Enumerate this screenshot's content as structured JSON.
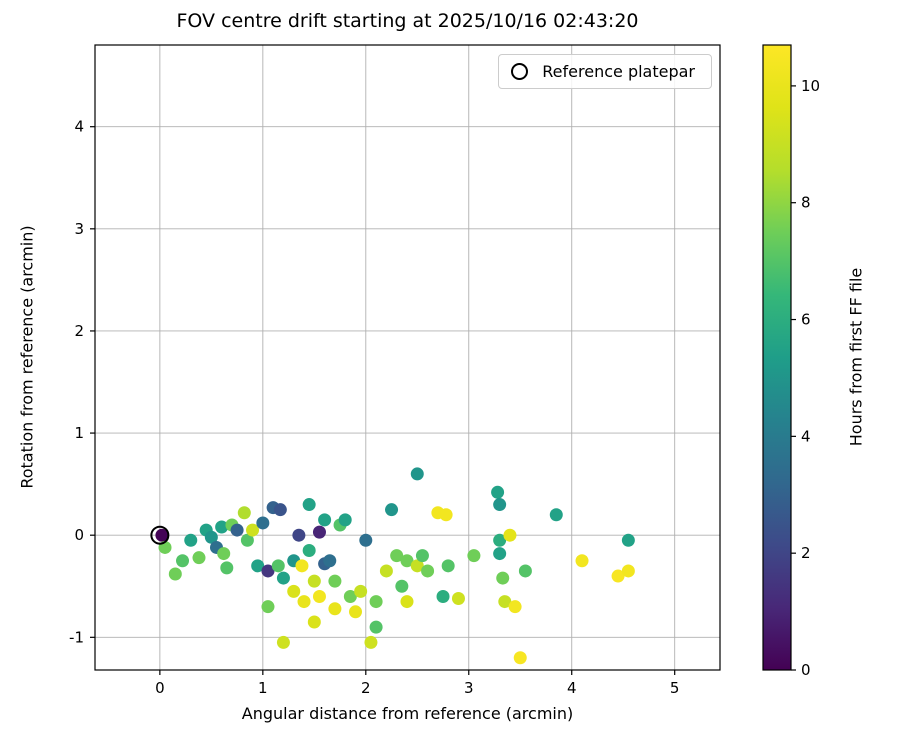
{
  "chart_data": {
    "type": "scatter",
    "title": "FOV centre drift starting at 2025/10/16 02:43:20",
    "xlabel": "Angular distance from reference (arcmin)",
    "ylabel": "Rotation from reference (arcmin)",
    "colorbar_label": "Hours from first FF file",
    "legend_label": "Reference platepar",
    "xlim": [
      -0.63,
      5.44
    ],
    "ylim": [
      -1.32,
      4.8
    ],
    "x_ticks": [
      0,
      1,
      2,
      3,
      4,
      5
    ],
    "y_ticks": [
      -1,
      0,
      1,
      2,
      3,
      4
    ],
    "grid": true,
    "grid_color": "#b0b0b0",
    "legend_position": "upper right",
    "colormap": "viridis",
    "colormap_stops": [
      "#440154",
      "#482878",
      "#3e4a89",
      "#31688e",
      "#26828e",
      "#1f9e89",
      "#35b779",
      "#6ece58",
      "#b5de2b",
      "#dfe318",
      "#fde725"
    ],
    "colorbar": {
      "min": 0,
      "max": 10.7,
      "ticks": [
        0,
        2,
        4,
        6,
        8,
        10
      ]
    },
    "reference_point": {
      "x": 0,
      "y": 0
    },
    "points_format": [
      "angular_distance_arcmin",
      "rotation_arcmin",
      "hours_from_first_ff_file"
    ],
    "points": [
      [
        0.02,
        0.0,
        0.05
      ],
      [
        0.05,
        -0.12,
        7.5
      ],
      [
        0.15,
        -0.38,
        7.5
      ],
      [
        0.22,
        -0.25,
        7.0
      ],
      [
        0.3,
        -0.05,
        5.5
      ],
      [
        0.38,
        -0.22,
        7.5
      ],
      [
        0.45,
        0.05,
        5.5
      ],
      [
        0.5,
        -0.02,
        5.0
      ],
      [
        0.55,
        -0.12,
        3.5
      ],
      [
        0.6,
        0.08,
        5.5
      ],
      [
        0.62,
        -0.18,
        7.5
      ],
      [
        0.65,
        -0.32,
        7.0
      ],
      [
        0.7,
        0.1,
        7.5
      ],
      [
        0.75,
        0.05,
        3.0
      ],
      [
        0.82,
        0.22,
        8.5
      ],
      [
        0.85,
        -0.05,
        7.0
      ],
      [
        0.9,
        0.05,
        9.2
      ],
      [
        0.95,
        -0.3,
        5.5
      ],
      [
        1.0,
        0.12,
        3.5
      ],
      [
        1.05,
        -0.35,
        1.5
      ],
      [
        1.05,
        -0.7,
        7.5
      ],
      [
        1.1,
        0.27,
        3.0
      ],
      [
        1.17,
        0.25,
        2.5
      ],
      [
        1.15,
        -0.3,
        7.0
      ],
      [
        1.2,
        -0.42,
        5.5
      ],
      [
        1.2,
        -1.05,
        9.2
      ],
      [
        1.3,
        -0.25,
        5.0
      ],
      [
        1.3,
        -0.55,
        9.5
      ],
      [
        1.35,
        0.0,
        2.0
      ],
      [
        1.38,
        -0.3,
        10.3
      ],
      [
        1.4,
        -0.65,
        10.0
      ],
      [
        1.45,
        0.3,
        5.5
      ],
      [
        1.45,
        -0.15,
        6.0
      ],
      [
        1.5,
        -0.45,
        9.0
      ],
      [
        1.5,
        -0.85,
        9.5
      ],
      [
        1.55,
        0.03,
        1.0
      ],
      [
        1.55,
        -0.6,
        10.3
      ],
      [
        1.6,
        0.15,
        5.5
      ],
      [
        1.6,
        -0.28,
        3.0
      ],
      [
        1.65,
        -0.25,
        3.5
      ],
      [
        1.7,
        -0.45,
        7.5
      ],
      [
        1.7,
        -0.72,
        10.0
      ],
      [
        1.75,
        0.1,
        7.0
      ],
      [
        1.8,
        0.15,
        5.5
      ],
      [
        1.85,
        -0.6,
        7.5
      ],
      [
        1.9,
        -0.75,
        10.0
      ],
      [
        1.95,
        -0.55,
        9.0
      ],
      [
        2.0,
        -0.05,
        3.5
      ],
      [
        2.05,
        -1.05,
        9.2
      ],
      [
        2.1,
        -0.65,
        7.5
      ],
      [
        2.1,
        -0.9,
        7.0
      ],
      [
        2.2,
        -0.35,
        9.0
      ],
      [
        2.25,
        0.25,
        5.0
      ],
      [
        2.3,
        -0.2,
        7.5
      ],
      [
        2.35,
        -0.5,
        7.0
      ],
      [
        2.4,
        -0.25,
        7.5
      ],
      [
        2.4,
        -0.65,
        9.5
      ],
      [
        2.5,
        0.6,
        5.0
      ],
      [
        2.5,
        -0.3,
        9.0
      ],
      [
        2.55,
        -0.2,
        7.0
      ],
      [
        2.6,
        -0.35,
        7.5
      ],
      [
        2.7,
        0.22,
        10.3
      ],
      [
        2.78,
        0.2,
        10.3
      ],
      [
        2.75,
        -0.6,
        6.0
      ],
      [
        2.8,
        -0.3,
        7.0
      ],
      [
        2.9,
        -0.62,
        9.2
      ],
      [
        3.05,
        -0.2,
        7.5
      ],
      [
        3.28,
        0.42,
        5.5
      ],
      [
        3.3,
        0.3,
        5.0
      ],
      [
        3.3,
        -0.05,
        6.0
      ],
      [
        3.3,
        -0.18,
        5.5
      ],
      [
        3.33,
        -0.42,
        7.5
      ],
      [
        3.35,
        -0.65,
        9.0
      ],
      [
        3.4,
        0.0,
        9.8
      ],
      [
        3.45,
        -0.7,
        10.3
      ],
      [
        3.5,
        -1.2,
        10.5
      ],
      [
        3.55,
        -0.35,
        7.0
      ],
      [
        3.85,
        0.2,
        5.5
      ],
      [
        4.1,
        -0.25,
        10.3
      ],
      [
        4.45,
        -0.4,
        10.5
      ],
      [
        4.55,
        -0.35,
        10.3
      ],
      [
        4.55,
        -0.05,
        5.5
      ]
    ]
  }
}
